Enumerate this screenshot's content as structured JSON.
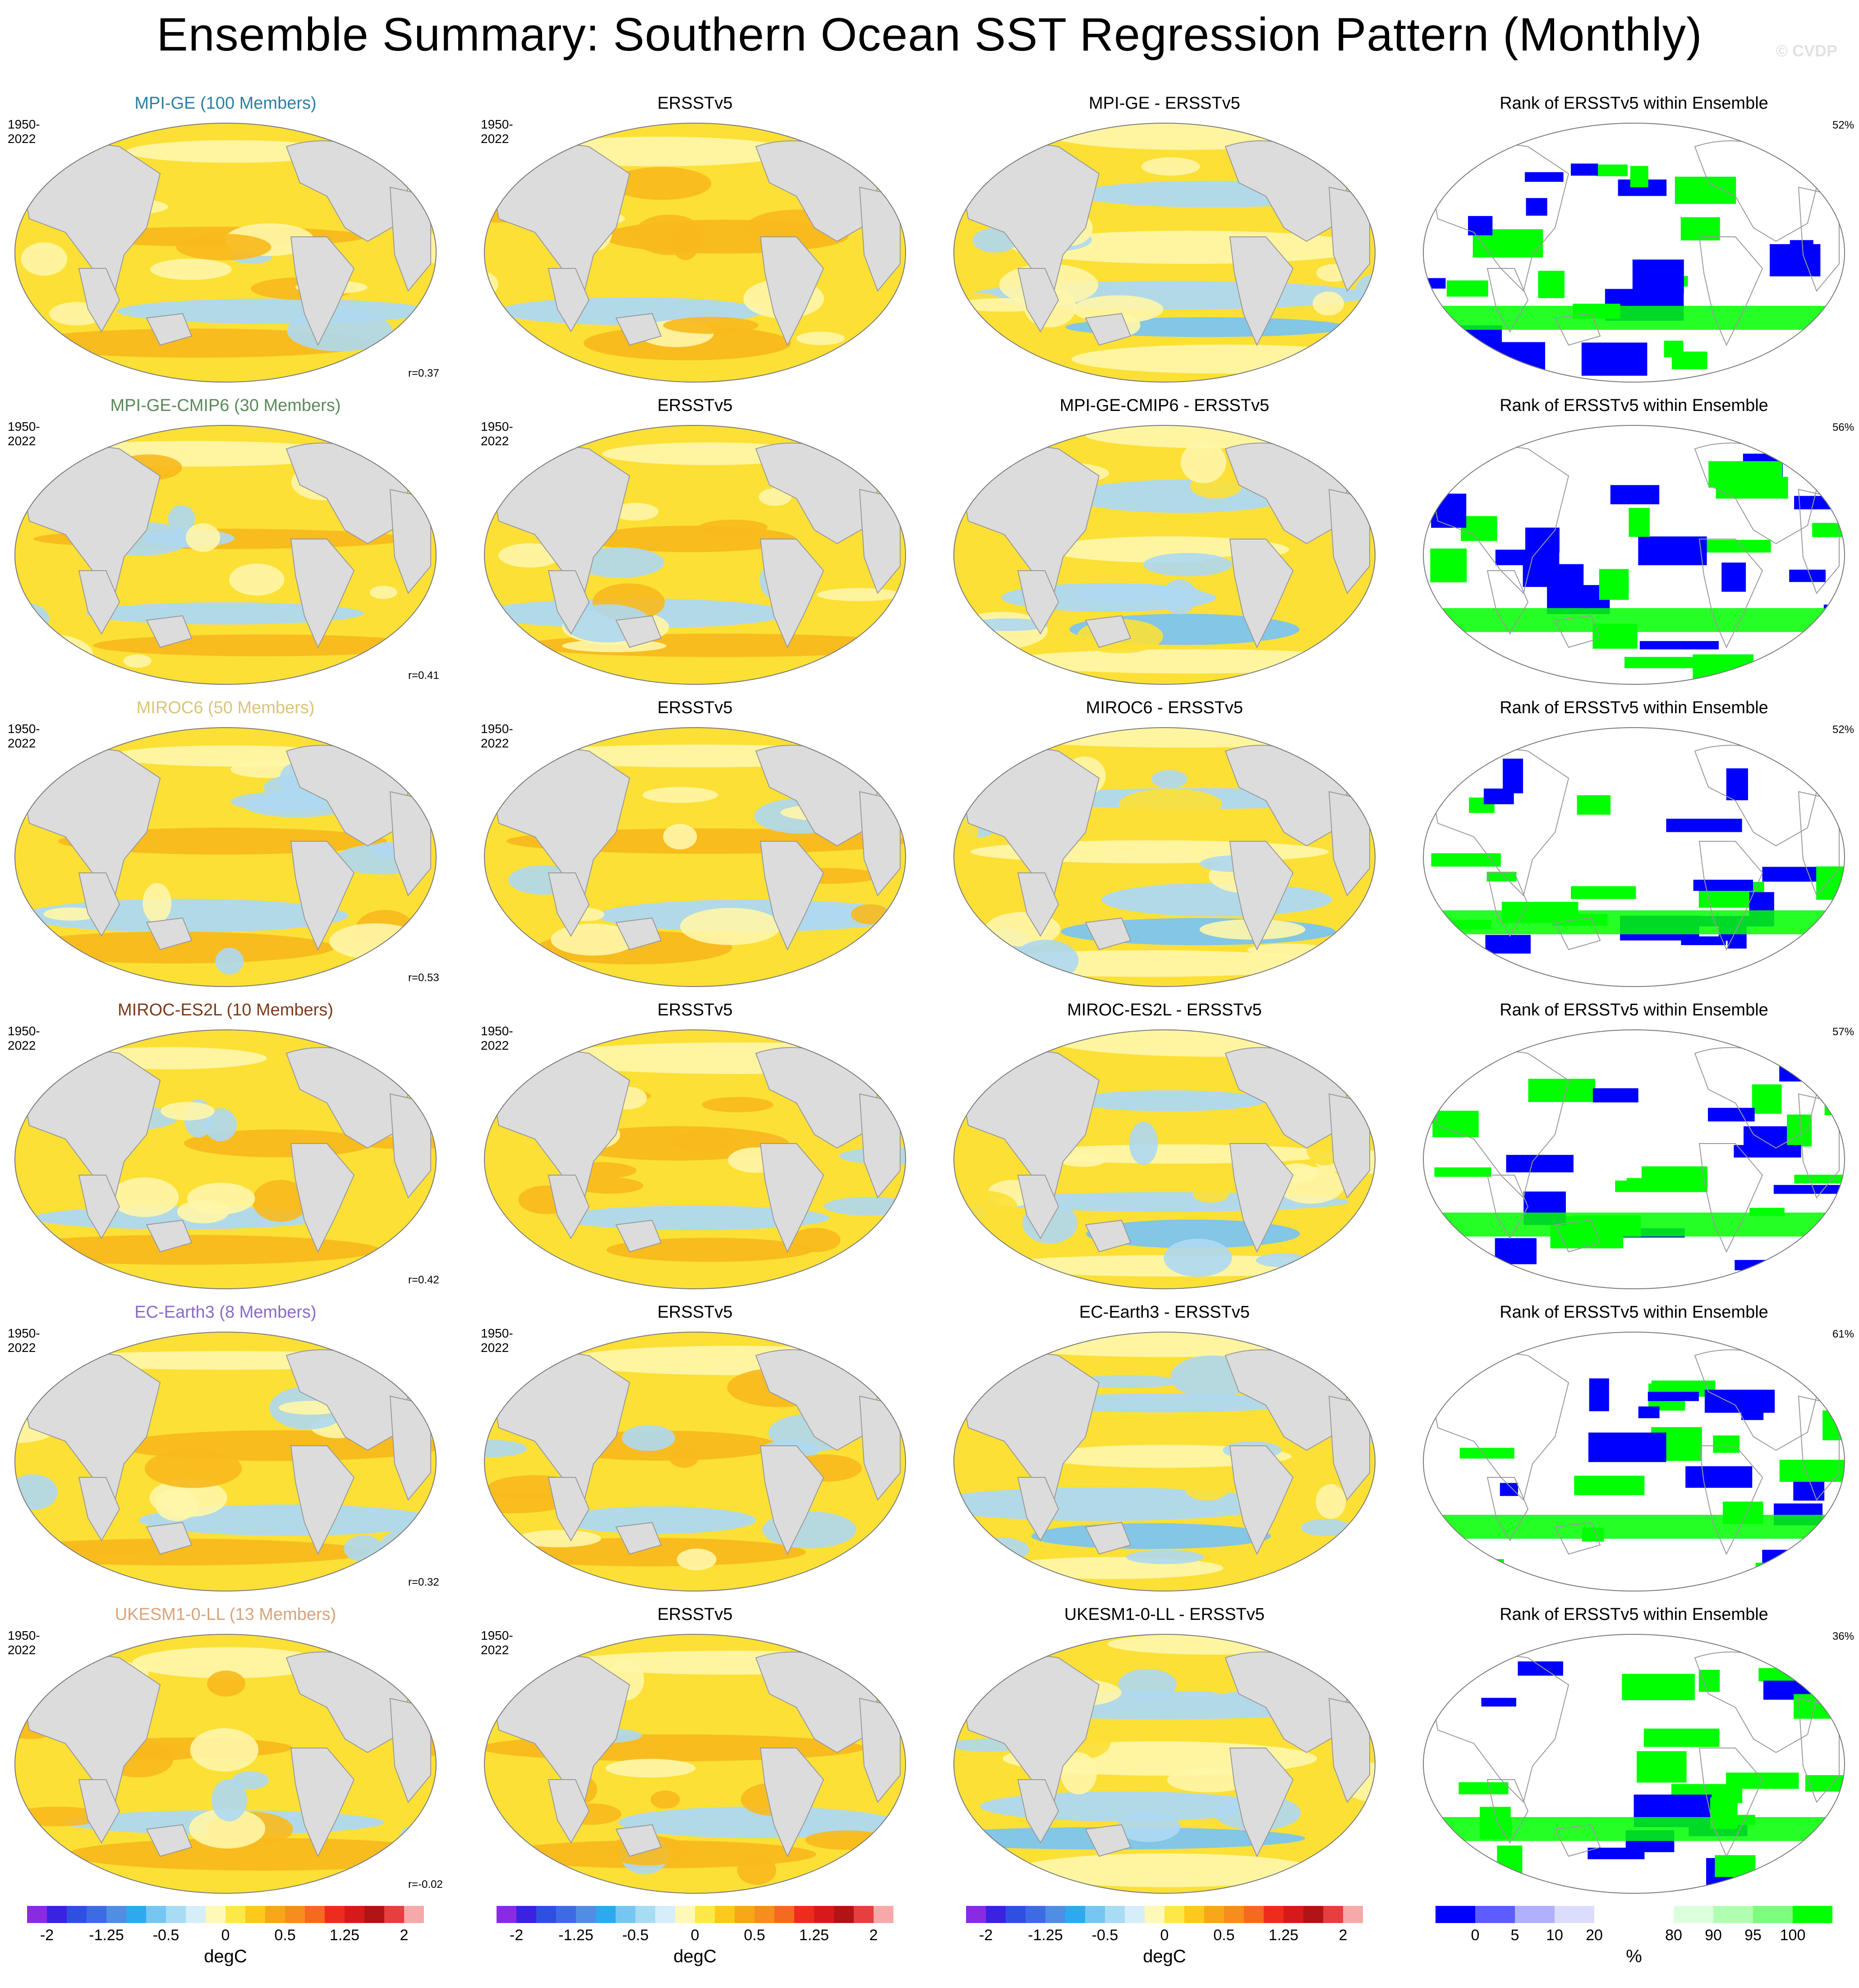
{
  "title": "Ensemble Summary: Southern Ocean SST Regression Pattern (Monthly)",
  "watermark": "© CVDP",
  "colors": {
    "land": "#dcdcdc",
    "ocean_warm": "#fce036",
    "ocean_pale": "#fff6a8",
    "ocean_cool": "#aed8f2",
    "ocean_cooler": "#7cc4ef",
    "ocean_hot": "#f8b91d",
    "rank_low": "#0000ff",
    "rank_high": "#00ff00"
  },
  "rows": [
    {
      "model": "MPI-GE (100 Members)",
      "model_color": "#2a7fa5",
      "period_model": "1950-2022",
      "period_obs": "1950-2022",
      "obs_title": "ERSSTv5",
      "diff_title": "MPI-GE - ERSSTv5",
      "rank_title": "Rank of ERSSTv5 within Ensemble",
      "pattern_corr": "r=0.37",
      "rank_pct": "52%"
    },
    {
      "model": "MPI-GE-CMIP6 (30 Members)",
      "model_color": "#5a8a5a",
      "period_model": "1950-2022",
      "period_obs": "1950-2022",
      "obs_title": "ERSSTv5",
      "diff_title": "MPI-GE-CMIP6 - ERSSTv5",
      "rank_title": "Rank of ERSSTv5 within Ensemble",
      "pattern_corr": "r=0.41",
      "rank_pct": "56%"
    },
    {
      "model": "MIROC6 (50 Members)",
      "model_color": "#d9c57a",
      "period_model": "1950-2022",
      "period_obs": "1950-2022",
      "obs_title": "ERSSTv5",
      "diff_title": "MIROC6 - ERSSTv5",
      "rank_title": "Rank of ERSSTv5 within Ensemble",
      "pattern_corr": "r=0.53",
      "rank_pct": "52%"
    },
    {
      "model": "MIROC-ES2L (10 Members)",
      "model_color": "#7b3a1a",
      "period_model": "1950-2022",
      "period_obs": "1950-2022",
      "obs_title": "ERSSTv5",
      "diff_title": "MIROC-ES2L - ERSSTv5",
      "rank_title": "Rank of ERSSTv5 within Ensemble",
      "pattern_corr": "r=0.42",
      "rank_pct": "57%"
    },
    {
      "model": "EC-Earth3 (8 Members)",
      "model_color": "#8a6ac8",
      "period_model": "1950-2022",
      "period_obs": "1950-2022",
      "obs_title": "ERSSTv5",
      "diff_title": "EC-Earth3 - ERSSTv5",
      "rank_title": "Rank of ERSSTv5 within Ensemble",
      "pattern_corr": "r=0.32",
      "rank_pct": "61%"
    },
    {
      "model": "UKESM1-0-LL (13 Members)",
      "model_color": "#d9a37a",
      "period_model": "1950-2022",
      "period_obs": "1950-2022",
      "obs_title": "ERSSTv5",
      "diff_title": "UKESM1-0-LL - ERSSTv5",
      "rank_title": "Rank of ERSSTv5 within Ensemble",
      "pattern_corr": "r=-0.02",
      "rank_pct": "36%"
    }
  ],
  "colorbars": {
    "sst": {
      "unit": "degC",
      "ticks": [
        "-2",
        "-1.25",
        "-0.5",
        "0",
        "0.5",
        "1.25",
        "2"
      ],
      "colors": [
        "#8a2be2",
        "#3a22e0",
        "#2f4fe0",
        "#3d6be6",
        "#4f8de6",
        "#2ea8f0",
        "#74c7f2",
        "#a8dcf4",
        "#d6eef9",
        "#fff9b8",
        "#fde84a",
        "#fcc91c",
        "#f9a61a",
        "#f78d1e",
        "#f46a1e",
        "#ee2c1c",
        "#d61a1a",
        "#b01414",
        "#e53f3f",
        "#f7a8a8"
      ]
    },
    "rank": {
      "unit": "%",
      "ticks": [
        "0",
        "5",
        "10",
        "20",
        "80",
        "90",
        "95",
        "100"
      ],
      "colors": [
        "#0000ff",
        "#5c5cff",
        "#b0b0ff",
        "#dcdcff",
        "#ffffff",
        "#ffffff",
        "#dcffdc",
        "#b0ffb0",
        "#7cff7c",
        "#00ff00"
      ]
    }
  },
  "chart_data": [
    {
      "type": "heatmap",
      "description_of_panels": "6 rows x 4 columns of global Robinson-projection maps",
      "columns": [
        "model ensemble mean",
        "ERSSTv5",
        "model minus ERSSTv5",
        "rank of ERSSTv5 within ensemble"
      ],
      "colorbar_sst_range": [
        -2,
        2
      ],
      "colorbar_rank_range": [
        0,
        100
      ]
    }
  ]
}
